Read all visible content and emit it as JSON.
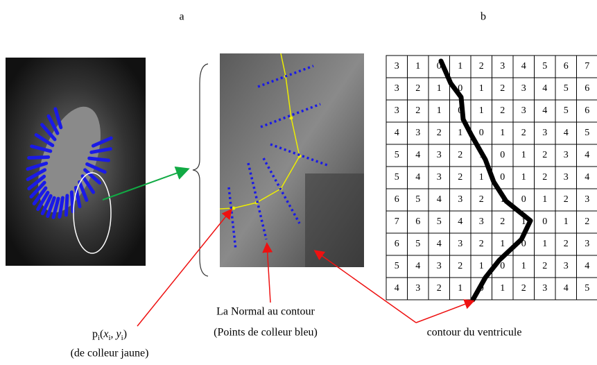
{
  "panel_labels": [
    "a",
    "b"
  ],
  "point_label": {
    "parts": [
      {
        "text": "p",
        "sub": false
      },
      {
        "text": "i",
        "sub": true
      },
      {
        "text": "(",
        "sub": false
      },
      {
        "text": "x",
        "sub": false
      },
      {
        "text": "i",
        "sub": true
      },
      {
        "text": ", ",
        "sub": false
      },
      {
        "text": "y",
        "sub": false
      },
      {
        "text": "i",
        "sub": true
      },
      {
        "text": ")",
        "sub": false
      }
    ],
    "note": "(de colleur jaune)"
  },
  "normal_label": {
    "title": "La Normal au contour",
    "note": "(Points de colleur bleu)"
  },
  "contour_label": "contour du ventricule",
  "grid": {
    "rows": [
      [
        "3",
        "1",
        "0",
        "1",
        "2",
        "3",
        "4",
        "5",
        "6",
        "7"
      ],
      [
        "3",
        "2",
        "1",
        "0",
        "1",
        "2",
        "3",
        "4",
        "5",
        "6"
      ],
      [
        "3",
        "2",
        "1",
        "0",
        "1",
        "2",
        "3",
        "4",
        "5",
        "6"
      ],
      [
        "4",
        "3",
        "2",
        "1",
        "0",
        "1",
        "2",
        "3",
        "4",
        "5"
      ],
      [
        "5",
        "4",
        "3",
        "2",
        "1",
        "0",
        "1",
        "2",
        "3",
        "4"
      ],
      [
        "5",
        "4",
        "3",
        "2",
        "1",
        "0",
        "1",
        "2",
        "3",
        "4"
      ],
      [
        "6",
        "5",
        "4",
        "3",
        "2",
        "1",
        "0",
        "1",
        "2",
        "3"
      ],
      [
        "7",
        "6",
        "5",
        "4",
        "3",
        "2",
        "1",
        "0",
        "1",
        "2"
      ],
      [
        "6",
        "5",
        "4",
        "3",
        "2",
        "1",
        "0",
        "1",
        "2",
        "3"
      ],
      [
        "5",
        "4",
        "3",
        "2",
        "1",
        "0",
        "1",
        "2",
        "3",
        "4"
      ],
      [
        "4",
        "3",
        "2",
        "1",
        "0",
        "1",
        "2",
        "3",
        "4",
        "5"
      ]
    ]
  }
}
